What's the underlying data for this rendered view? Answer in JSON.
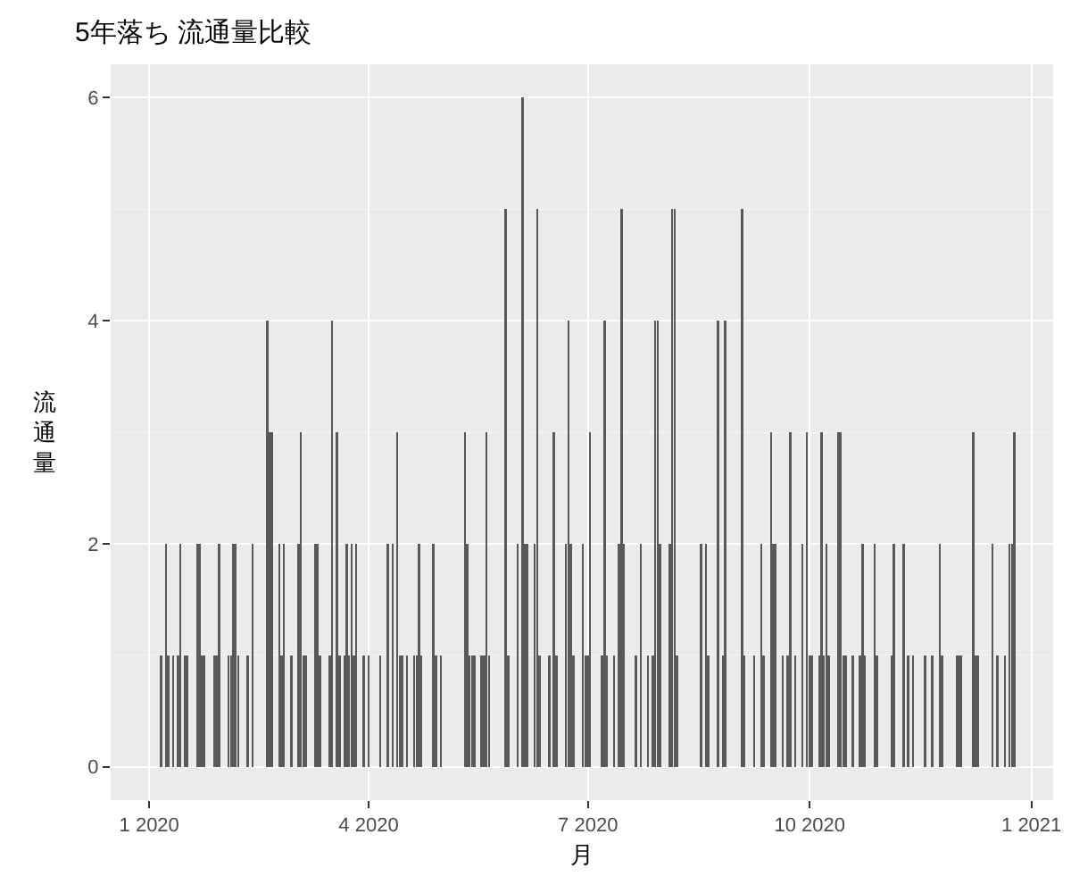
{
  "chart_data": {
    "type": "bar",
    "title": "5年落ち 流通量比較",
    "xlabel": "月",
    "ylabel": "流通量",
    "x": [
      "2020-01-06",
      "2020-01-08",
      "2020-01-09",
      "2020-01-11",
      "2020-01-13",
      "2020-01-14",
      "2020-01-16",
      "2020-01-17",
      "2020-01-21",
      "2020-01-22",
      "2020-01-23",
      "2020-01-24",
      "2020-01-28",
      "2020-01-29",
      "2020-01-30",
      "2020-02-03",
      "2020-02-04",
      "2020-02-05",
      "2020-02-06",
      "2020-02-07",
      "2020-02-11",
      "2020-02-13",
      "2020-02-19",
      "2020-02-20",
      "2020-02-21",
      "2020-02-24",
      "2020-02-25",
      "2020-02-26",
      "2020-02-29",
      "2020-03-03",
      "2020-03-04",
      "2020-03-05",
      "2020-03-06",
      "2020-03-10",
      "2020-03-11",
      "2020-03-12",
      "2020-03-16",
      "2020-03-17",
      "2020-03-19",
      "2020-03-20",
      "2020-03-22",
      "2020-03-23",
      "2020-03-24",
      "2020-03-25",
      "2020-03-26",
      "2020-03-27",
      "2020-03-30",
      "2020-04-01",
      "2020-04-06",
      "2020-04-09",
      "2020-04-11",
      "2020-04-13",
      "2020-04-14",
      "2020-04-15",
      "2020-04-17",
      "2020-04-20",
      "2020-04-21",
      "2020-04-22",
      "2020-04-23",
      "2020-04-28",
      "2020-04-29",
      "2020-05-01",
      "2020-05-11",
      "2020-05-12",
      "2020-05-13",
      "2020-05-14",
      "2020-05-15",
      "2020-05-18",
      "2020-05-19",
      "2020-05-20",
      "2020-05-21",
      "2020-05-28",
      "2020-05-29",
      "2020-06-02",
      "2020-06-04",
      "2020-06-05",
      "2020-06-06",
      "2020-06-09",
      "2020-06-10",
      "2020-06-11",
      "2020-06-15",
      "2020-06-17",
      "2020-06-18",
      "2020-06-22",
      "2020-06-23",
      "2020-06-24",
      "2020-06-25",
      "2020-06-29",
      "2020-06-30",
      "2020-07-01",
      "2020-07-02",
      "2020-07-07",
      "2020-07-08",
      "2020-07-09",
      "2020-07-12",
      "2020-07-14",
      "2020-07-15",
      "2020-07-16",
      "2020-07-21",
      "2020-07-23",
      "2020-07-26",
      "2020-07-28",
      "2020-07-29",
      "2020-07-30",
      "2020-07-31",
      "2020-08-04",
      "2020-08-05",
      "2020-08-06",
      "2020-08-07",
      "2020-08-17",
      "2020-08-19",
      "2020-08-20",
      "2020-08-24",
      "2020-08-26",
      "2020-08-27",
      "2020-09-03",
      "2020-09-04",
      "2020-09-08",
      "2020-09-11",
      "2020-09-12",
      "2020-09-15",
      "2020-09-16",
      "2020-09-17",
      "2020-09-20",
      "2020-09-22",
      "2020-09-23",
      "2020-09-25",
      "2020-09-28",
      "2020-09-30",
      "2020-10-01",
      "2020-10-02",
      "2020-10-05",
      "2020-10-06",
      "2020-10-07",
      "2020-10-08",
      "2020-10-09",
      "2020-10-13",
      "2020-10-14",
      "2020-10-15",
      "2020-10-16",
      "2020-10-19",
      "2020-10-22",
      "2020-10-23",
      "2020-10-24",
      "2020-10-28",
      "2020-10-29",
      "2020-11-04",
      "2020-11-05",
      "2020-11-09",
      "2020-11-11",
      "2020-11-13",
      "2020-11-18",
      "2020-11-21",
      "2020-11-24",
      "2020-11-25",
      "2020-12-01",
      "2020-12-02",
      "2020-12-03",
      "2020-12-08",
      "2020-12-09",
      "2020-12-10",
      "2020-12-16",
      "2020-12-18",
      "2020-12-21",
      "2020-12-23",
      "2020-12-24",
      "2020-12-25"
    ],
    "values": [
      1,
      2,
      1,
      1,
      1,
      2,
      1,
      1,
      2,
      2,
      1,
      1,
      1,
      1,
      2,
      1,
      1,
      2,
      2,
      1,
      1,
      2,
      4,
      3,
      3,
      2,
      1,
      2,
      1,
      2,
      3,
      1,
      1,
      2,
      2,
      1,
      1,
      4,
      3,
      1,
      1,
      2,
      1,
      2,
      1,
      2,
      1,
      1,
      1,
      2,
      2,
      3,
      1,
      1,
      1,
      1,
      1,
      2,
      1,
      2,
      1,
      1,
      3,
      2,
      1,
      1,
      1,
      1,
      1,
      3,
      1,
      5,
      1,
      2,
      6,
      2,
      2,
      2,
      5,
      1,
      1,
      3,
      1,
      2,
      4,
      2,
      1,
      2,
      1,
      1,
      3,
      1,
      4,
      1,
      1,
      2,
      5,
      2,
      1,
      2,
      1,
      1,
      4,
      4,
      2,
      2,
      5,
      5,
      1,
      2,
      2,
      1,
      4,
      1,
      4,
      5,
      1,
      1,
      2,
      1,
      3,
      2,
      2,
      1,
      1,
      3,
      1,
      2,
      3,
      1,
      1,
      1,
      3,
      1,
      2,
      1,
      3,
      3,
      1,
      1,
      1,
      1,
      2,
      1,
      2,
      1,
      1,
      2,
      2,
      1,
      1,
      1,
      1,
      2,
      1,
      1,
      1,
      1,
      3,
      1,
      1,
      2,
      1,
      1,
      2,
      2,
      3
    ],
    "color": "#595959",
    "xlim": [
      "2019-12-16",
      "2021-01-10"
    ],
    "xticks": [
      {
        "value": "2020-01-01",
        "label": "1 2020"
      },
      {
        "value": "2020-04-01",
        "label": "4 2020"
      },
      {
        "value": "2020-07-01",
        "label": "7 2020"
      },
      {
        "value": "2020-10-01",
        "label": "10 2020"
      },
      {
        "value": "2021-01-01",
        "label": "1 2021"
      }
    ],
    "ylim": [
      -0.3,
      6.3
    ],
    "yticks": [
      0,
      2,
      4,
      6
    ],
    "grid": true
  }
}
